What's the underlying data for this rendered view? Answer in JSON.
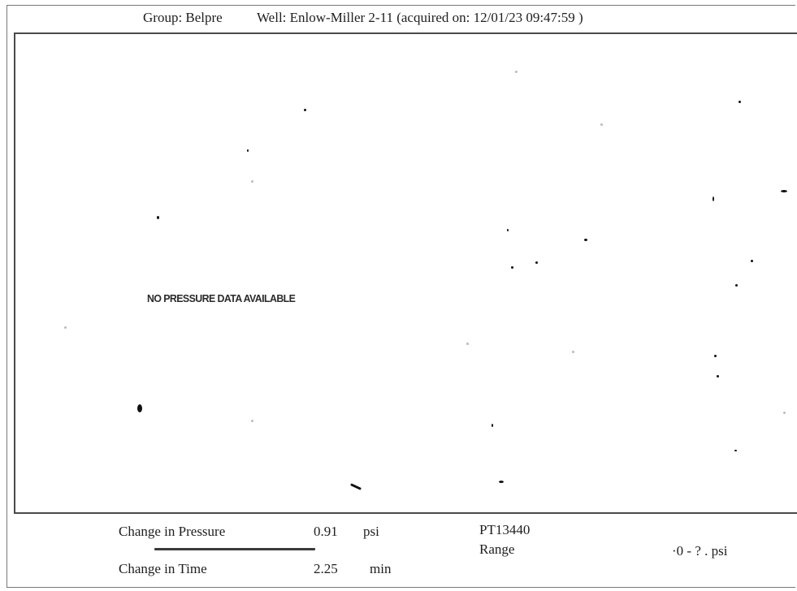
{
  "header": {
    "group": "Group: Belpre",
    "well": "Well: Enlow-Miller 2-11 (acquired on: 12/01/23 09:47:59 )"
  },
  "plot": {
    "message": "NO PRESSURE DATA AVAILABLE"
  },
  "footer": {
    "change_pressure_label": "Change in Pressure",
    "change_pressure_value": "0.91",
    "change_pressure_unit": "psi",
    "change_time_label": "Change in Time",
    "change_time_value": "2.25",
    "change_time_unit": "min",
    "sensor_id": "PT13440",
    "range_label": "Range",
    "range_value": "·0 - ? . psi"
  }
}
